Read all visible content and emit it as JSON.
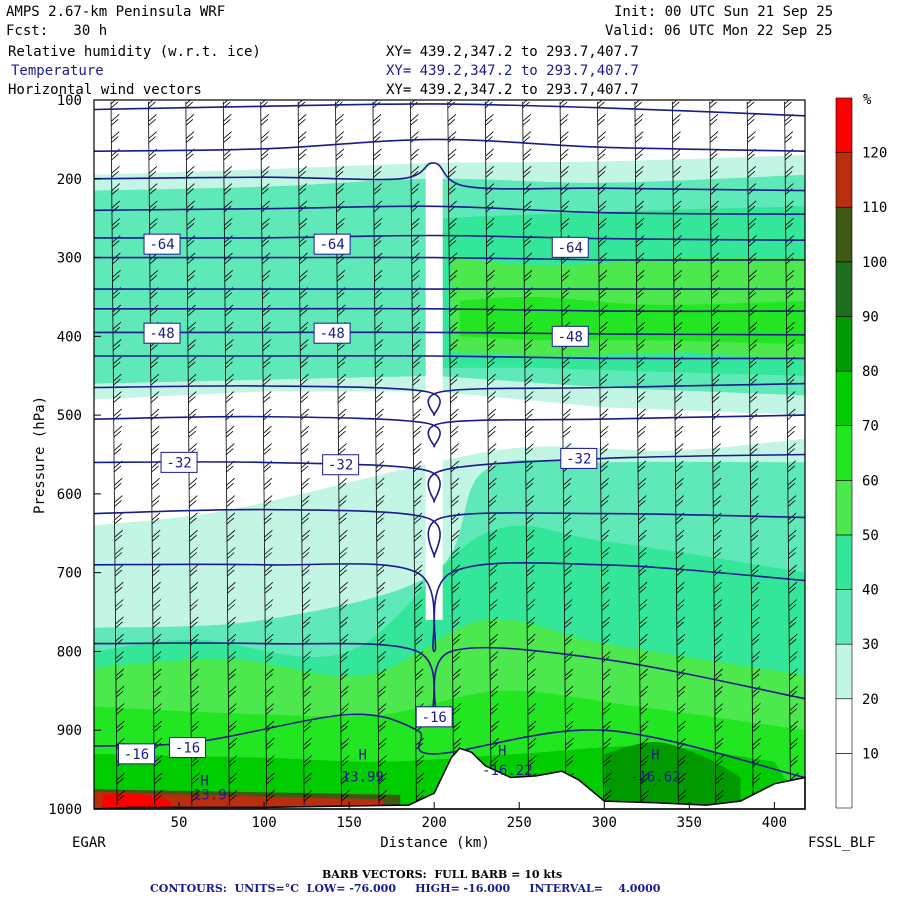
{
  "header": {
    "model_title": "AMPS 2.67-km Peninsula WRF",
    "init": "Init: 00 UTC Sun 21 Sep 25",
    "fcst": "Fcst:   30 h",
    "valid": "Valid: 06 UTC Mon 22 Sep 25",
    "fields": [
      {
        "label": "Relative humidity (w.r.t. ice)",
        "xy": "XY= 439.2,347.2 to 293.7,407.7"
      },
      {
        "label": "Temperature",
        "xy": "XY= 439.2,347.2 to 293.7,407.7"
      },
      {
        "label": "Horizontal wind vectors",
        "xy": "XY= 439.2,347.2 to 293.7,407.7"
      }
    ]
  },
  "axes": {
    "ylabel": "Pressure (hPa)",
    "xlabel": "Distance (km)",
    "left_station": "EGAR",
    "right_station": "FSSL_BLF"
  },
  "footer": {
    "barb": "BARB VECTORS:  FULL BARB = 10 kts",
    "contours": "CONTOURS:  UNITS=°C  LOW= -76.000     HIGH= -16.000     INTERVAL=    4.0000"
  },
  "colors": {
    "temperature_contour": "#1a1a8c",
    "rh_white": "#ffffff",
    "rh_30": "#c2f5e3",
    "rh_40": "#5fe8b8",
    "rh_50": "#33e69a",
    "rh_60": "#4de84d",
    "rh_70": "#22e622",
    "rh_80": "#00cc00",
    "rh_90": "#009a00",
    "rh_100": "#1f6e1f",
    "rh_110": "#3e5a12",
    "rh_120": "#b82e0f",
    "rh_130": "#ff0000"
  },
  "chart_data": {
    "type": "cross-section",
    "title": "Relative humidity (w.r.t. ice), Temperature, Horizontal wind vectors",
    "xlabel": "Distance (km)",
    "ylabel": "Pressure (hPa)",
    "xlim": [
      0,
      418
    ],
    "ylim": [
      1000,
      100
    ],
    "x_ticks": [
      50,
      100,
      150,
      200,
      250,
      300,
      350,
      400
    ],
    "x_tick_labels": [
      "50",
      "100",
      "150",
      "200",
      "250",
      "300",
      "350",
      "400"
    ],
    "y_ticks": [
      100,
      200,
      300,
      400,
      500,
      600,
      700,
      800,
      900,
      1000
    ],
    "y_tick_labels": [
      "100",
      "200",
      "300",
      "400",
      "500",
      "600",
      "700",
      "800",
      "900",
      "1000"
    ],
    "colorbar": {
      "unit": "%",
      "ticks": [
        10,
        20,
        30,
        40,
        50,
        60,
        70,
        80,
        90,
        100,
        110,
        120
      ],
      "tick_labels": [
        "10",
        "20",
        "30",
        "40",
        "50",
        "60",
        "70",
        "80",
        "90",
        "100",
        "110",
        "120"
      ],
      "range": [
        0,
        130
      ]
    },
    "temperature_levels": [
      -76,
      -72,
      -68,
      -64,
      -60,
      -56,
      -52,
      -48,
      -44,
      -40,
      -36,
      -32,
      -28,
      -24,
      -20,
      -16
    ],
    "temperature_labels": [
      {
        "text": "-64",
        "x": 40,
        "p": 283
      },
      {
        "text": "-64",
        "x": 140,
        "p": 283
      },
      {
        "text": "-64",
        "x": 280,
        "p": 287
      },
      {
        "text": "-48",
        "x": 40,
        "p": 396
      },
      {
        "text": "-48",
        "x": 140,
        "p": 396
      },
      {
        "text": "-48",
        "x": 280,
        "p": 400
      },
      {
        "text": "-32",
        "x": 50,
        "p": 560
      },
      {
        "text": "-32",
        "x": 145,
        "p": 563
      },
      {
        "text": "-32",
        "x": 285,
        "p": 555
      },
      {
        "text": "-16",
        "x": 25,
        "p": 930
      },
      {
        "text": "-16",
        "x": 55,
        "p": 922
      },
      {
        "text": "-16",
        "x": 200,
        "p": 883
      }
    ],
    "extrema_labels": [
      {
        "text": "H",
        "x": 65,
        "p": 970
      },
      {
        "text": "13.9",
        "x": 68,
        "p": 988
      },
      {
        "text": "H",
        "x": 158,
        "p": 937
      },
      {
        "text": "13.99",
        "x": 158,
        "p": 965
      },
      {
        "text": "H",
        "x": 240,
        "p": 932
      },
      {
        "text": "-16.22",
        "x": 243,
        "p": 957
      },
      {
        "text": "H",
        "x": 330,
        "p": 937
      },
      {
        "text": "-16.62",
        "x": 330,
        "p": 965
      }
    ],
    "terrain": [
      [
        0,
        1000
      ],
      [
        20,
        998
      ],
      [
        100,
        998
      ],
      [
        185,
        995
      ],
      [
        200,
        980
      ],
      [
        210,
        935
      ],
      [
        215,
        923
      ],
      [
        222,
        928
      ],
      [
        230,
        945
      ],
      [
        245,
        960
      ],
      [
        260,
        958
      ],
      [
        275,
        952
      ],
      [
        285,
        963
      ],
      [
        300,
        990
      ],
      [
        330,
        992
      ],
      [
        360,
        995
      ],
      [
        380,
        990
      ],
      [
        400,
        968
      ],
      [
        418,
        960
      ]
    ]
  }
}
